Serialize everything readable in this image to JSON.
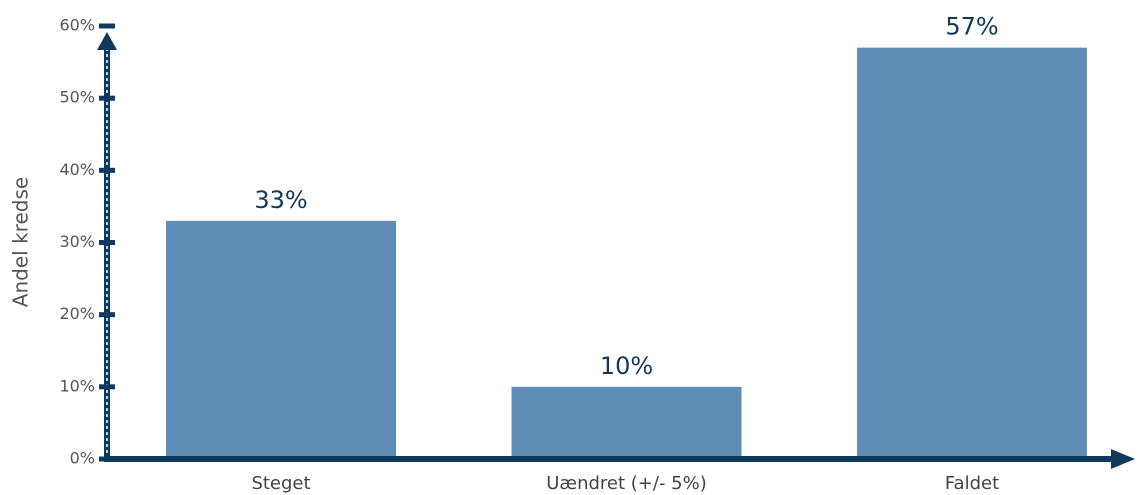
{
  "chart_data": {
    "type": "bar",
    "ylabel": "Andel kredse",
    "categories": [
      "Steget",
      "Uændret (+/- 5%)",
      "Faldet"
    ],
    "values": [
      33,
      10,
      57
    ],
    "value_labels": [
      "33%",
      "10%",
      "57%"
    ],
    "color": "#5f8db6",
    "ylim": [
      0,
      60
    ],
    "yticks": [
      {
        "value": 0,
        "label": "0%"
      },
      {
        "value": 10,
        "label": "10%"
      },
      {
        "value": 20,
        "label": "20%"
      },
      {
        "value": 30,
        "label": "30%"
      },
      {
        "value": 40,
        "label": "40%"
      },
      {
        "value": 50,
        "label": "50%"
      },
      {
        "value": 60,
        "label": "60%"
      }
    ],
    "grid": false
  }
}
